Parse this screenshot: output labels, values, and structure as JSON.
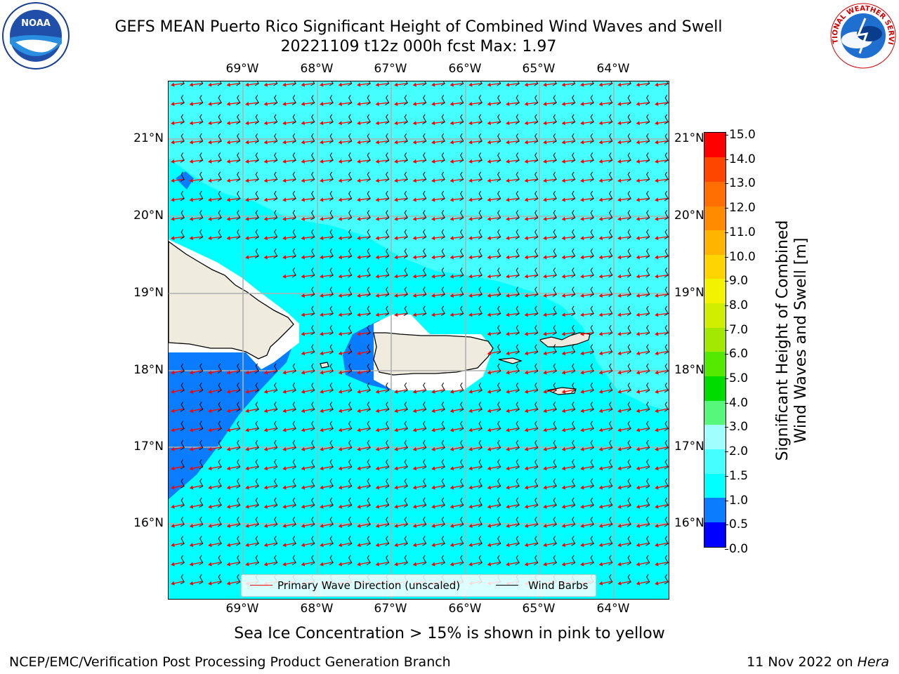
{
  "header": {
    "title_line1": "GEFS MEAN Puerto Rico Significant Height of Combined Wind Waves and Swell",
    "title_line2": "20221109 t12z 000h fcst   Max: 1.97"
  },
  "logos": {
    "left": {
      "icon": "noaa-logo-icon",
      "text": "NOAA"
    },
    "right": {
      "icon": "national-weather-service-logo-icon",
      "text": "NATIONAL WEATHER SERVICE"
    }
  },
  "map": {
    "longitude_labels": [
      "69°W",
      "68°W",
      "67°W",
      "66°W",
      "65°W",
      "64°W"
    ],
    "latitude_labels": [
      "21°N",
      "20°N",
      "19°N",
      "18°N",
      "17°N",
      "16°N"
    ],
    "colors": {
      "sea_1_0_1_5": "#00ffff",
      "sea_1_5_2_0": "#45fefe",
      "sea_0_5_1_0": "#0a7cff",
      "land": "#efebde",
      "gridline": "#b0b0b0",
      "wave_arrow": "#ff0000",
      "wind_barb": "#000000"
    },
    "legend": {
      "wave_label": "Primary Wave Direction (unscaled)",
      "wind_label": "Wind Barbs"
    }
  },
  "colorbar": {
    "label_line1": "Significant Height of Combined",
    "label_line2": "Wind Waves and Swell [m]",
    "ticks": [
      "0.0",
      "0.5",
      "1.0",
      "1.5",
      "2.0",
      "3.0",
      "4.0",
      "5.0",
      "6.0",
      "7.0",
      "8.0",
      "9.0",
      "10.0",
      "11.0",
      "12.0",
      "13.0",
      "14.0",
      "15.0"
    ],
    "segment_colors": [
      "#0000ff",
      "#0a7cff",
      "#00ffff",
      "#45fefe",
      "#a0fefe",
      "#56f77a",
      "#00dc00",
      "#55e800",
      "#a2e800",
      "#cfee00",
      "#f3f300",
      "#ffd500",
      "#ffb400",
      "#ff8c00",
      "#ff6e00",
      "#ff4600",
      "#ff0000"
    ]
  },
  "footer": {
    "note": "Sea Ice Concentration > 15% is shown in pink to yellow",
    "credit_left": "NCEP/EMC/Verification Post Processing Product Generation Branch",
    "credit_date": "11 Nov 2022 on",
    "credit_host": "Hera"
  }
}
